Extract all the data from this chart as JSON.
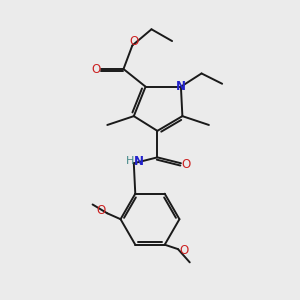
{
  "bg_color": "#ebebeb",
  "bond_color": "#1a1a1a",
  "N_color": "#2222cc",
  "O_color": "#cc2222",
  "NH_color": "#448888",
  "line_width": 1.4,
  "font_size": 8.5,
  "fig_w": 3.0,
  "fig_h": 3.0,
  "dpi": 100,
  "xlim": [
    0,
    10
  ],
  "ylim": [
    0,
    10
  ]
}
